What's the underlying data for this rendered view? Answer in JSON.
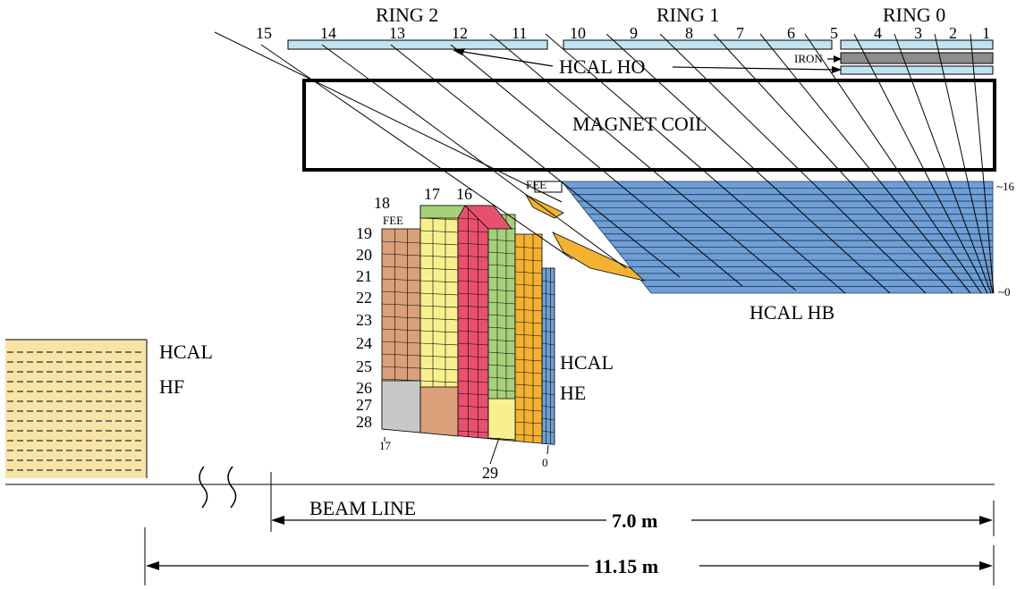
{
  "rings": {
    "ring2": "RING 2",
    "ring1": "RING 1",
    "ring0": "RING 0"
  },
  "tower_numbers_top": [
    "15",
    "14",
    "13",
    "12",
    "11",
    "10",
    "9",
    "8",
    "7",
    "6",
    "5",
    "4",
    "3",
    "2",
    "1"
  ],
  "ho": {
    "label": "HCAL HO",
    "iron": "IRON"
  },
  "magnet": {
    "label": "MAGNET COIL"
  },
  "hb": {
    "label": "HCAL HB",
    "fee": "FEE",
    "depth_top": "~16",
    "depth_bottom": "~0"
  },
  "he": {
    "label_line1": "HCAL",
    "label_line2": "HE",
    "fee": "FEE",
    "top_numbers": [
      "18",
      "17",
      "16"
    ],
    "side_numbers": [
      "19",
      "20",
      "21",
      "22",
      "23",
      "24",
      "25",
      "26",
      "27",
      "28"
    ],
    "bottom_left": "17",
    "bottom_mid": "29",
    "bottom_right": "0"
  },
  "hf": {
    "label_line1": "HCAL",
    "label_line2": "HF"
  },
  "beam_line": "BEAM LINE",
  "dimensions": {
    "short": "7.0 m",
    "long": "11.15 m"
  },
  "colors": {
    "ho_light": "#bfe3f3",
    "iron": "#8c8c8c",
    "hb_blue": "#6f9fd3",
    "orange": "#f4b232",
    "tan": "#d9a07a",
    "yellow": "#f8f08e",
    "pink": "#e8506f",
    "green": "#a6d07a",
    "gray": "#c8c8c8",
    "hf_fill": "#f7e4a8"
  }
}
